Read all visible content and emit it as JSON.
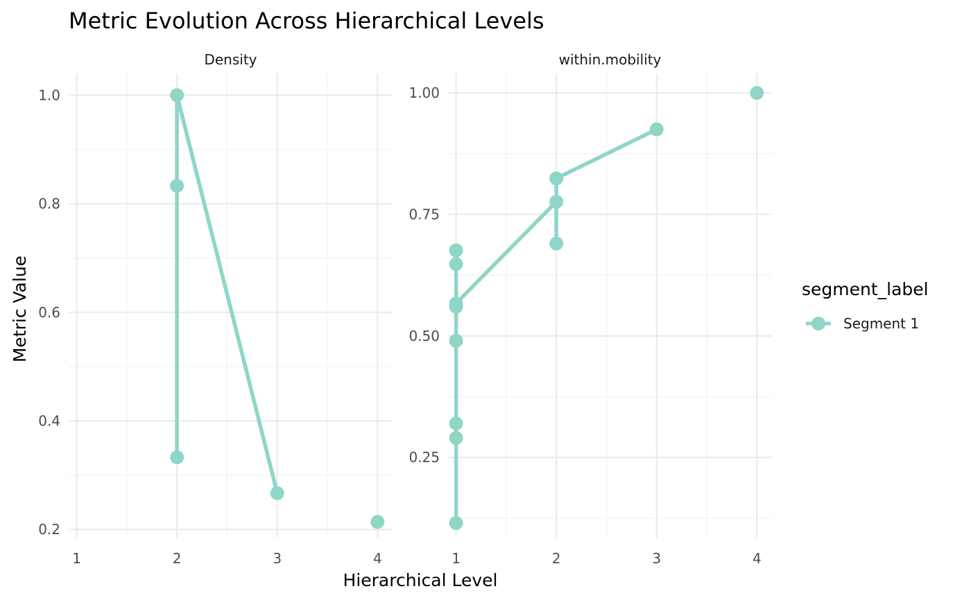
{
  "chart_data": {
    "type": "line",
    "title": "Metric Evolution Across Hierarchical Levels",
    "xlabel": "Hierarchical Level",
    "ylabel": "Metric Value",
    "legend": {
      "title": "segment_label",
      "position": "right",
      "entries": [
        {
          "label": "Segment 1",
          "color": "#8fd5c8"
        }
      ]
    },
    "color": "#8fd5c8",
    "grid": true,
    "panels": [
      {
        "strip": "Density",
        "xlim": [
          0.92,
          4.15
        ],
        "ylim": [
          0.185,
          1.04
        ],
        "x_ticks": [
          1,
          2,
          3,
          4
        ],
        "x_tick_labels": [
          "1",
          "2",
          "3",
          "4"
        ],
        "y_ticks": [
          0.2,
          0.4,
          0.6,
          0.8,
          1.0
        ],
        "y_tick_labels": [
          "0.2",
          "0.4",
          "0.6",
          "0.8",
          "1.0"
        ],
        "y_minor": [
          0.3,
          0.5,
          0.7,
          0.9
        ],
        "series": [
          {
            "name": "Segment 1",
            "x": [
              2,
              2,
              2,
              3,
              4
            ],
            "y": [
              0.333,
              0.833,
              1.0,
              0.267,
              0.214
            ],
            "path_order": [
              0,
              1,
              2,
              3
            ],
            "isolated_points": [
              4
            ]
          }
        ]
      },
      {
        "strip": "within.mobility",
        "xlim": [
          0.92,
          4.15
        ],
        "ylim": [
          0.085,
          1.04
        ],
        "x_ticks": [
          1,
          2,
          3,
          4
        ],
        "x_tick_labels": [
          "1",
          "2",
          "3",
          "4"
        ],
        "y_ticks": [
          0.25,
          0.5,
          0.75,
          1.0
        ],
        "y_tick_labels": [
          "0.25",
          "0.50",
          "0.75",
          "1.00"
        ],
        "y_minor": [
          0.125,
          0.375,
          0.625,
          0.875
        ],
        "series": [
          {
            "name": "Segment 1",
            "x": [
              1,
              1,
              1,
              1,
              1,
              1,
              1,
              1,
              2,
              2,
              2,
              3,
              4
            ],
            "y": [
              0.115,
              0.29,
              0.32,
              0.49,
              0.56,
              0.567,
              0.648,
              0.676,
              0.69,
              0.776,
              0.824,
              0.925,
              1.0
            ],
            "path_order": [
              0,
              1,
              2,
              3,
              4,
              5,
              6,
              7,
              5,
              9,
              8,
              10,
              11
            ],
            "isolated_points": [
              12
            ]
          }
        ]
      }
    ]
  }
}
